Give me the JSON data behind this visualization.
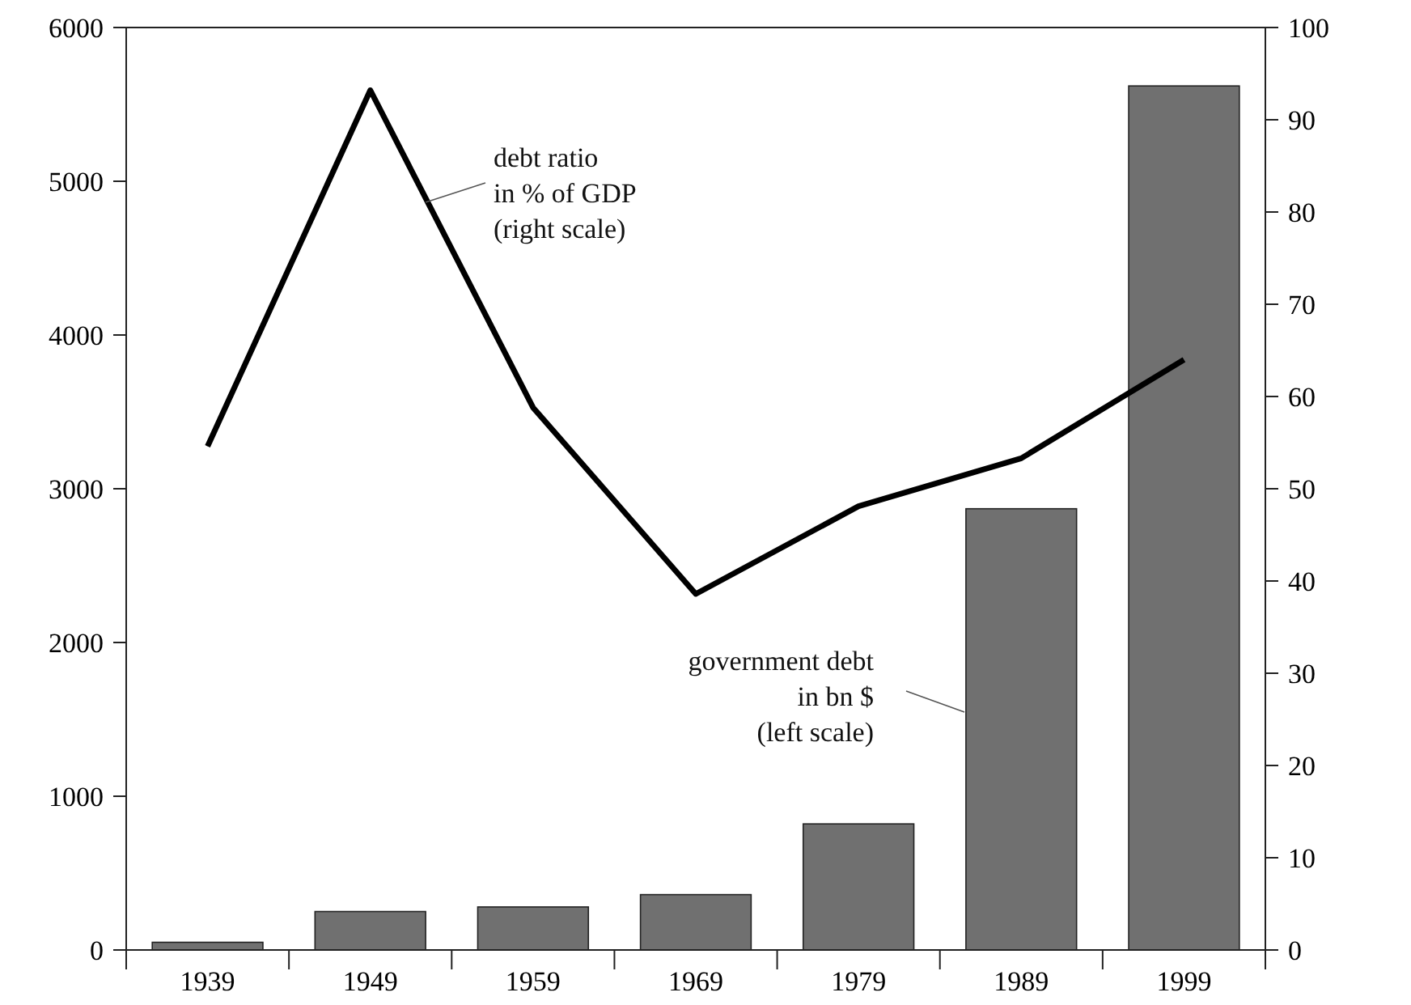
{
  "chart_data": {
    "type": "bar",
    "categories": [
      "1939",
      "1949",
      "1959",
      "1969",
      "1979",
      "1989",
      "1999"
    ],
    "series": [
      {
        "name": "government debt\nin bn $\n(left scale)",
        "color": "#707070",
        "values": [
          50,
          250,
          280,
          360,
          820,
          2870,
          5620
        ]
      },
      {
        "type": "line",
        "name": "debt ratio\nin % of GDP\n(right scale)",
        "color": "#000000",
        "axis": "y2",
        "values": [
          54.6,
          93.2,
          58.8,
          38.6,
          48.1,
          53.3,
          64.0
        ]
      }
    ],
    "ylim": [
      0,
      6000
    ],
    "yticks": [
      0,
      1000,
      2000,
      3000,
      4000,
      5000,
      6000
    ],
    "y2lim": [
      0,
      100
    ],
    "y2ticks": [
      0,
      10,
      20,
      30,
      40,
      50,
      60,
      70,
      80,
      90,
      100
    ],
    "grid": false,
    "marker": "none",
    "line_style": "solid"
  }
}
